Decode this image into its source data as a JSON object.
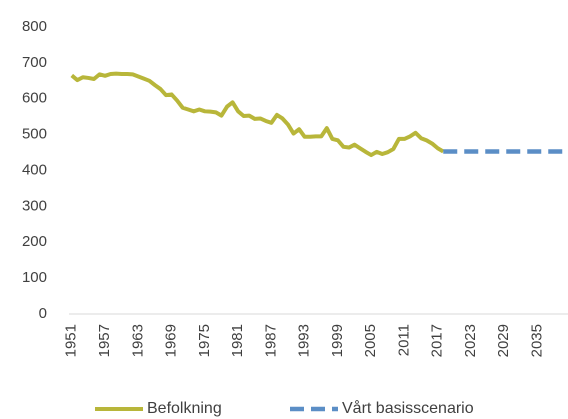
{
  "chart_data": {
    "type": "line",
    "categories": [
      "1951",
      null,
      null,
      null,
      null,
      null,
      "1957",
      null,
      null,
      null,
      null,
      null,
      "1963",
      null,
      null,
      null,
      null,
      null,
      "1969",
      null,
      null,
      null,
      null,
      null,
      "1975",
      null,
      null,
      null,
      null,
      null,
      "1981",
      null,
      null,
      null,
      null,
      null,
      "1987",
      null,
      null,
      null,
      null,
      null,
      "1993",
      null,
      null,
      null,
      null,
      null,
      "1999",
      null,
      null,
      null,
      null,
      null,
      "2005",
      null,
      null,
      null,
      null,
      null,
      "2011",
      null,
      null,
      null,
      null,
      null,
      "2017",
      null,
      null,
      null,
      null,
      null,
      "2023",
      null,
      null,
      null,
      null,
      null,
      "2029",
      null,
      null,
      null,
      null,
      null,
      "2035",
      null,
      null,
      null,
      null,
      null
    ],
    "series": [
      {
        "name": "Befolkning",
        "color": "#b8b63a",
        "dashed": false,
        "values": [
          665,
          652,
          660,
          658,
          655,
          668,
          664,
          669,
          670,
          669,
          669,
          668,
          662,
          656,
          650,
          638,
          627,
          610,
          612,
          595,
          575,
          570,
          565,
          570,
          565,
          564,
          562,
          553,
          578,
          590,
          565,
          552,
          553,
          544,
          545,
          538,
          533,
          555,
          545,
          528,
          503,
          515,
          494,
          494,
          495,
          495,
          518,
          488,
          484,
          466,
          464,
          472,
          462,
          452,
          443,
          452,
          446,
          451,
          460,
          488,
          488,
          495,
          505,
          490,
          484,
          475,
          462,
          453,
          null,
          null,
          null,
          null,
          null,
          null,
          null,
          null,
          null,
          null,
          null,
          null,
          null,
          null,
          null,
          null,
          null,
          null,
          null,
          null,
          null,
          null
        ]
      },
      {
        "name": "Vårt basisscenario",
        "color": "#5b8ec6",
        "dashed": true,
        "values": [
          null,
          null,
          null,
          null,
          null,
          null,
          null,
          null,
          null,
          null,
          null,
          null,
          null,
          null,
          null,
          null,
          null,
          null,
          null,
          null,
          null,
          null,
          null,
          null,
          null,
          null,
          null,
          null,
          null,
          null,
          null,
          null,
          null,
          null,
          null,
          null,
          null,
          null,
          null,
          null,
          null,
          null,
          null,
          null,
          null,
          null,
          null,
          null,
          null,
          null,
          null,
          null,
          null,
          null,
          null,
          null,
          null,
          null,
          null,
          null,
          null,
          null,
          null,
          null,
          null,
          null,
          null,
          453,
          453,
          453,
          453,
          453,
          453,
          453,
          453,
          453,
          453,
          453,
          453,
          453,
          453,
          453,
          453,
          453,
          453,
          453,
          453,
          453,
          453,
          453
        ]
      }
    ],
    "ylim": [
      0,
      800
    ],
    "yticks": [
      0,
      100,
      200,
      300,
      400,
      500,
      600,
      700,
      800
    ],
    "grid": false
  }
}
